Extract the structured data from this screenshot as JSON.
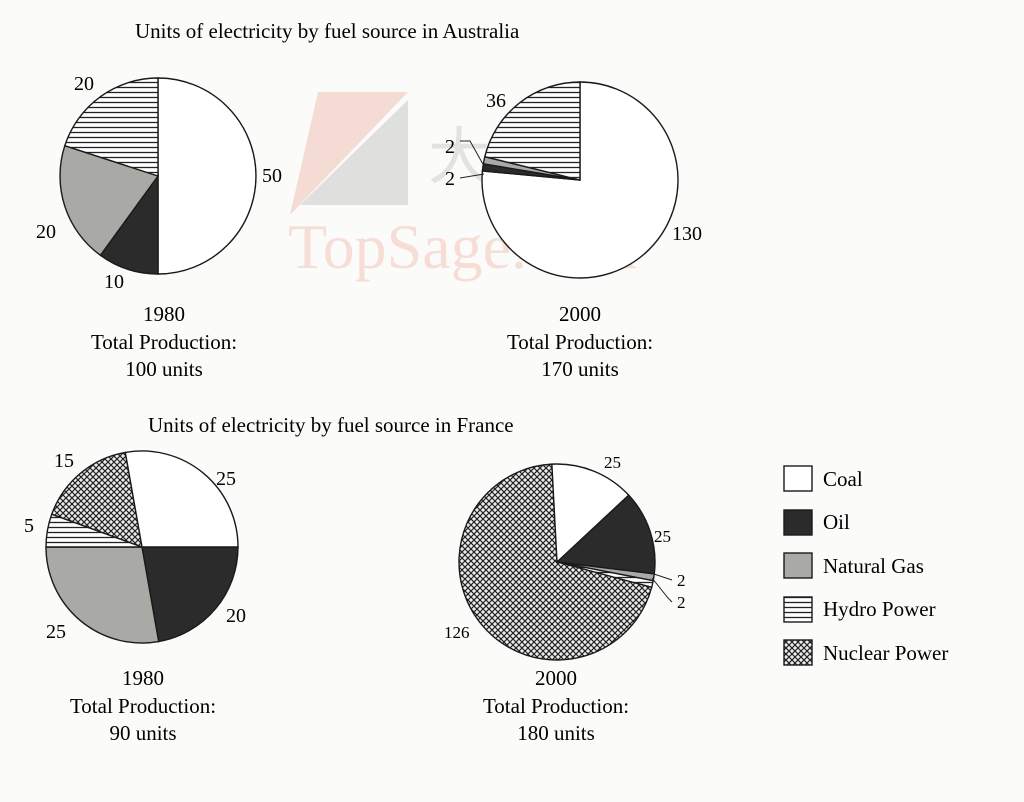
{
  "watermark": {
    "brand": "TopSage.com",
    "cjk": "大家网"
  },
  "legend": [
    {
      "key": "coal",
      "label": "Coal",
      "pattern": "white"
    },
    {
      "key": "oil",
      "label": "Oil",
      "pattern": "dark"
    },
    {
      "key": "gas",
      "label": "Natural Gas",
      "pattern": "grey"
    },
    {
      "key": "hydro",
      "label": "Hydro Power",
      "pattern": "hlines"
    },
    {
      "key": "nuclear",
      "label": "Nuclear Power",
      "pattern": "cross"
    }
  ],
  "colors": {
    "coal": "#ffffff",
    "oil": "#2b2b2b",
    "gas": "#a9aaa6",
    "outline": "#1a1a1a"
  },
  "chart_data": [
    {
      "type": "pie",
      "group": "Units of electricity by fuel source in Australia",
      "year": "1980",
      "total_label": "Total Production:",
      "total_value": "100 units",
      "slices": [
        {
          "name": "Coal",
          "value": 50,
          "label": "50"
        },
        {
          "name": "Oil",
          "value": 10,
          "label": "10"
        },
        {
          "name": "Natural Gas",
          "value": 20,
          "label": "20"
        },
        {
          "name": "Hydro Power",
          "value": 20,
          "label": "20"
        }
      ]
    },
    {
      "type": "pie",
      "group": "Units of electricity by fuel source in Australia",
      "year": "2000",
      "total_label": "Total Production:",
      "total_value": "170 units",
      "slices": [
        {
          "name": "Coal",
          "value": 130,
          "label": "130"
        },
        {
          "name": "Oil",
          "value": 2,
          "label": "2"
        },
        {
          "name": "Natural Gas",
          "value": 2,
          "label": "2"
        },
        {
          "name": "Hydro Power",
          "value": 36,
          "label": "36"
        }
      ]
    },
    {
      "type": "pie",
      "group": "Units of electricity by fuel source in France",
      "year": "1980",
      "total_label": "Total Production:",
      "total_value": "90 units",
      "slices": [
        {
          "name": "Coal",
          "value": 25,
          "label": "25"
        },
        {
          "name": "Oil",
          "value": 20,
          "label": "20"
        },
        {
          "name": "Natural Gas",
          "value": 25,
          "label": "25"
        },
        {
          "name": "Hydro Power",
          "value": 5,
          "label": "5"
        },
        {
          "name": "Nuclear Power",
          "value": 15,
          "label": "15"
        }
      ]
    },
    {
      "type": "pie",
      "group": "Units of electricity by fuel source in France",
      "year": "2000",
      "total_label": "Total Production:",
      "total_value": "180 units",
      "slices": [
        {
          "name": "Coal",
          "value": 25,
          "label": "25"
        },
        {
          "name": "Oil",
          "value": 25,
          "label": "25"
        },
        {
          "name": "Natural Gas",
          "value": 2,
          "label": "2"
        },
        {
          "name": "Hydro Power",
          "value": 2,
          "label": "2"
        },
        {
          "name": "Nuclear Power",
          "value": 126,
          "label": "126"
        }
      ]
    }
  ]
}
